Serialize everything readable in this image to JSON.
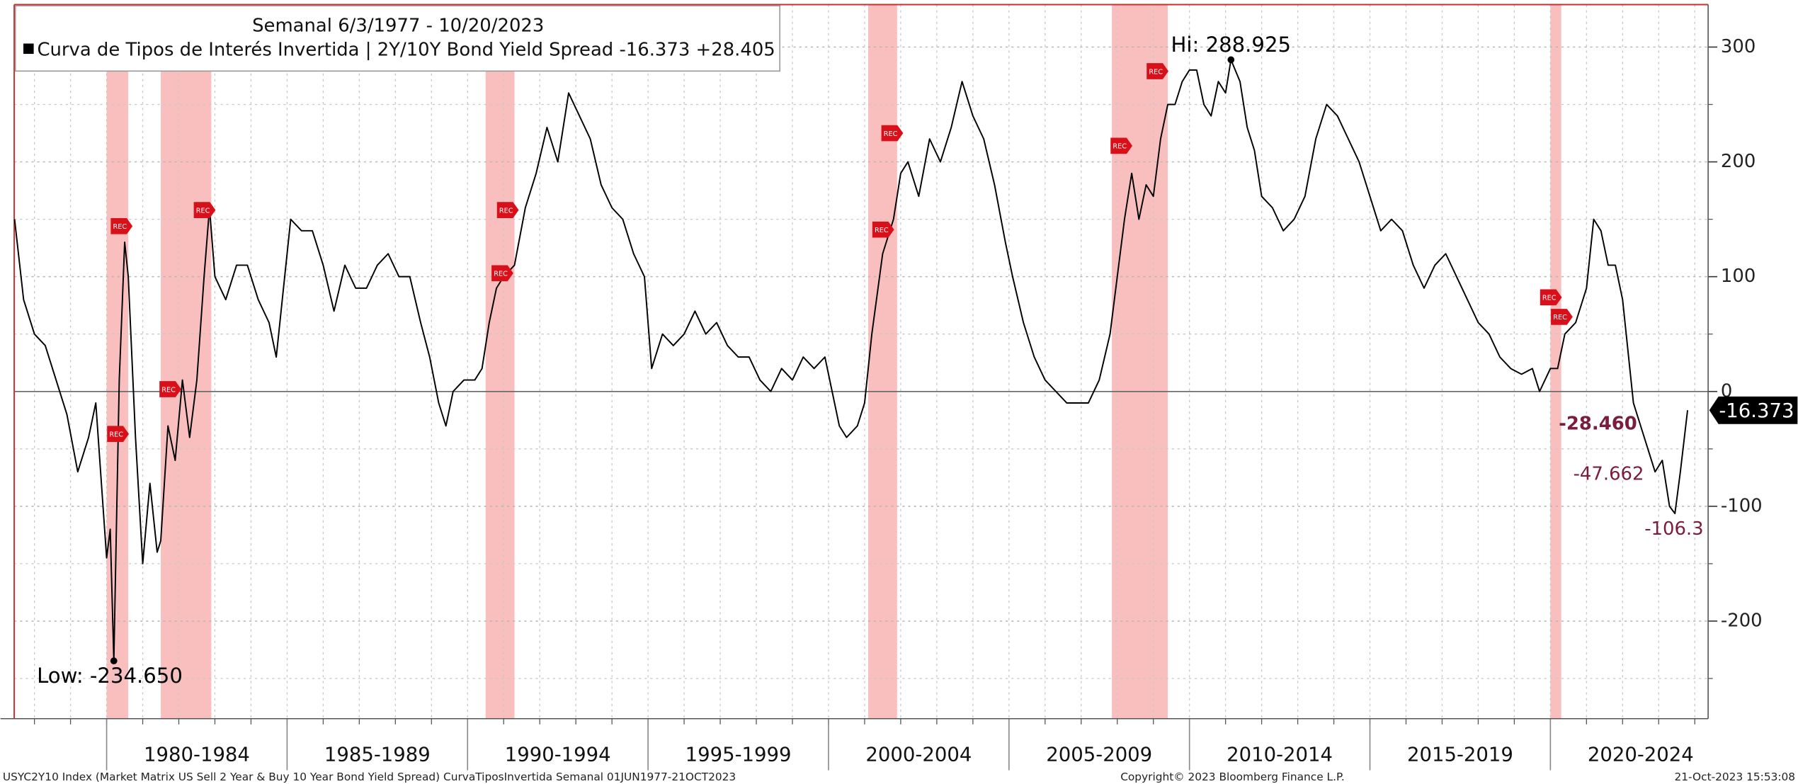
{
  "chart_data": {
    "type": "line",
    "title": "Semanal 6/3/1977 - 10/20/2023",
    "legend": "Curva de Tipos de Interés Invertida | 2Y/10Y Bond Yield Spread -16.373 +28.405",
    "series_color": "#000000",
    "x": [
      1977.45,
      1977.7,
      1978.0,
      1978.3,
      1978.6,
      1978.9,
      1979.2,
      1979.5,
      1979.7,
      1979.9,
      1980.0,
      1980.1,
      1980.2,
      1980.35,
      1980.5,
      1980.6,
      1980.8,
      1981.0,
      1981.2,
      1981.4,
      1981.5,
      1981.7,
      1981.9,
      1982.1,
      1982.3,
      1982.5,
      1982.7,
      1982.85,
      1983.0,
      1983.3,
      1983.6,
      1983.9,
      1984.2,
      1984.5,
      1984.7,
      1984.9,
      1985.1,
      1985.4,
      1985.7,
      1986.0,
      1986.3,
      1986.6,
      1986.9,
      1987.2,
      1987.5,
      1987.8,
      1988.1,
      1988.4,
      1988.7,
      1988.95,
      1989.2,
      1989.4,
      1989.6,
      1989.9,
      1990.2,
      1990.4,
      1990.6,
      1990.8,
      1991.0,
      1991.3,
      1991.6,
      1991.9,
      1992.2,
      1992.5,
      1992.8,
      1993.1,
      1993.4,
      1993.7,
      1994.0,
      1994.3,
      1994.6,
      1994.9,
      1995.1,
      1995.4,
      1995.7,
      1996.0,
      1996.3,
      1996.6,
      1996.9,
      1997.2,
      1997.5,
      1997.8,
      1998.1,
      1998.4,
      1998.7,
      1999.0,
      1999.3,
      1999.6,
      1999.9,
      2000.1,
      2000.3,
      2000.5,
      2000.8,
      2001.0,
      2001.2,
      2001.5,
      2001.8,
      2002.0,
      2002.2,
      2002.5,
      2002.8,
      2003.1,
      2003.4,
      2003.7,
      2004.0,
      2004.3,
      2004.6,
      2004.9,
      2005.1,
      2005.4,
      2005.7,
      2006.0,
      2006.3,
      2006.6,
      2006.9,
      2007.2,
      2007.5,
      2007.8,
      2008.0,
      2008.2,
      2008.4,
      2008.6,
      2008.8,
      2009.0,
      2009.2,
      2009.4,
      2009.6,
      2009.8,
      2010.0,
      2010.2,
      2010.4,
      2010.6,
      2010.8,
      2011.0,
      2011.15,
      2011.4,
      2011.6,
      2011.8,
      2012.0,
      2012.3,
      2012.6,
      2012.9,
      2013.2,
      2013.5,
      2013.8,
      2014.1,
      2014.4,
      2014.7,
      2015.0,
      2015.3,
      2015.6,
      2015.9,
      2016.2,
      2016.5,
      2016.8,
      2017.1,
      2017.4,
      2017.7,
      2018.0,
      2018.3,
      2018.6,
      2018.9,
      2019.2,
      2019.5,
      2019.7,
      2020.0,
      2020.2,
      2020.4,
      2020.7,
      2021.0,
      2021.2,
      2021.4,
      2021.6,
      2021.8,
      2022.0,
      2022.2,
      2022.3,
      2022.5,
      2022.7,
      2022.9,
      2023.1,
      2023.3,
      2023.45,
      2023.6,
      2023.8
    ],
    "values": [
      150,
      80,
      50,
      40,
      10,
      -20,
      -70,
      -40,
      -10,
      -100,
      -145,
      -120,
      -234.65,
      10,
      130,
      100,
      -40,
      -150,
      -80,
      -140,
      -130,
      -30,
      -60,
      10,
      -40,
      10,
      100,
      160,
      100,
      80,
      110,
      110,
      80,
      60,
      30,
      90,
      150,
      140,
      140,
      110,
      70,
      110,
      90,
      90,
      110,
      120,
      100,
      100,
      60,
      30,
      -10,
      -30,
      0,
      10,
      10,
      20,
      60,
      90,
      100,
      110,
      160,
      190,
      230,
      200,
      260,
      240,
      220,
      180,
      160,
      150,
      120,
      100,
      20,
      50,
      40,
      50,
      70,
      50,
      60,
      40,
      30,
      30,
      10,
      0,
      20,
      10,
      30,
      20,
      30,
      0,
      -30,
      -40,
      -30,
      -10,
      50,
      120,
      150,
      190,
      200,
      170,
      220,
      200,
      230,
      270,
      240,
      220,
      180,
      130,
      100,
      60,
      30,
      10,
      0,
      -10,
      -10,
      -10,
      10,
      50,
      100,
      150,
      190,
      150,
      180,
      170,
      220,
      250,
      250,
      270,
      280,
      280,
      250,
      240,
      270,
      260,
      288.925,
      270,
      230,
      210,
      170,
      160,
      140,
      150,
      170,
      220,
      250,
      240,
      220,
      200,
      170,
      140,
      150,
      140,
      110,
      90,
      110,
      120,
      100,
      80,
      60,
      50,
      30,
      20,
      15,
      20,
      0,
      20,
      20,
      50,
      60,
      90,
      150,
      140,
      110,
      110,
      80,
      20,
      -10,
      -30,
      -50,
      -70,
      -60,
      -100,
      -106.3,
      -70,
      -16.373
    ],
    "xlim": [
      1977.44,
      2024.37
    ],
    "ylim": [
      -285,
      337
    ],
    "yticks": [
      300,
      200,
      100,
      0,
      -100,
      -200
    ],
    "minor_yticks": [
      250,
      150,
      50,
      -50,
      -150,
      -250
    ],
    "xticks": [
      {
        "value": 1980,
        "label": "1980-1984"
      },
      {
        "value": 1985,
        "label": "1985-1989"
      },
      {
        "value": 1990,
        "label": "1990-1994"
      },
      {
        "value": 1995,
        "label": "1995-1999"
      },
      {
        "value": 2000,
        "label": "2000-2004"
      },
      {
        "value": 2005,
        "label": "2005-2009"
      },
      {
        "value": 2010,
        "label": "2010-2014"
      },
      {
        "value": 2015,
        "label": "2015-2019"
      },
      {
        "value": 2020,
        "label": "2020-2024"
      }
    ],
    "minor_xticks": [
      1978,
      1979,
      1980,
      1981,
      1982,
      1983,
      1984,
      1985,
      1986,
      1987,
      1988,
      1989,
      1990,
      1991,
      1992,
      1993,
      1994,
      1995,
      1996,
      1997,
      1998,
      1999,
      2000,
      2001,
      2002,
      2003,
      2004,
      2005,
      2006,
      2007,
      2008,
      2009,
      2010,
      2011,
      2012,
      2013,
      2014,
      2015,
      2016,
      2017,
      2018,
      2019,
      2020,
      2021,
      2022,
      2023,
      2024
    ],
    "recessions": [
      [
        1980.0,
        1980.6
      ],
      [
        1981.5,
        1982.9
      ],
      [
        1990.5,
        1991.3
      ],
      [
        2001.1,
        2001.9
      ],
      [
        2007.85,
        2009.4
      ],
      [
        2020.0,
        2020.3
      ]
    ],
    "recession_color": "#f8b4b4",
    "flags": [
      {
        "x": 1980.4,
        "y": 144,
        "label": "REC"
      },
      {
        "x": 1980.3,
        "y": -37,
        "label": "REC"
      },
      {
        "x": 1981.75,
        "y": 2,
        "label": "REC"
      },
      {
        "x": 1982.7,
        "y": 158,
        "label": "REC"
      },
      {
        "x": 1990.95,
        "y": 103,
        "label": "REC"
      },
      {
        "x": 1991.1,
        "y": 158,
        "label": "REC"
      },
      {
        "x": 2001.5,
        "y": 141,
        "label": "REC"
      },
      {
        "x": 2001.75,
        "y": 225,
        "label": "REC"
      },
      {
        "x": 2008.1,
        "y": 214,
        "label": "REC"
      },
      {
        "x": 2009.1,
        "y": 279,
        "label": "REC"
      },
      {
        "x": 2020.0,
        "y": 82,
        "label": "REC"
      },
      {
        "x": 2020.3,
        "y": 65,
        "label": "REC"
      }
    ],
    "high": {
      "label": "Hi: 288.925",
      "x": 2011.15,
      "value": 288.925
    },
    "low": {
      "label": "Low: -234.650",
      "x": 1980.2,
      "value": -234.65
    },
    "last_value_label": "-16.373",
    "annotations": [
      "-28.460",
      "-47.662",
      "-106.3"
    ],
    "footer_left": "USYC2Y10 Index (Market Matrix US Sell 2 Year & Buy 10 Year Bond Yield Spread) CurvaTiposInvertida  Semanal 01JUN1977-21OCT2023",
    "footer_center": "Copyright© 2023 Bloomberg Finance L.P.",
    "footer_right": "21-Oct-2023 15:53:08"
  }
}
